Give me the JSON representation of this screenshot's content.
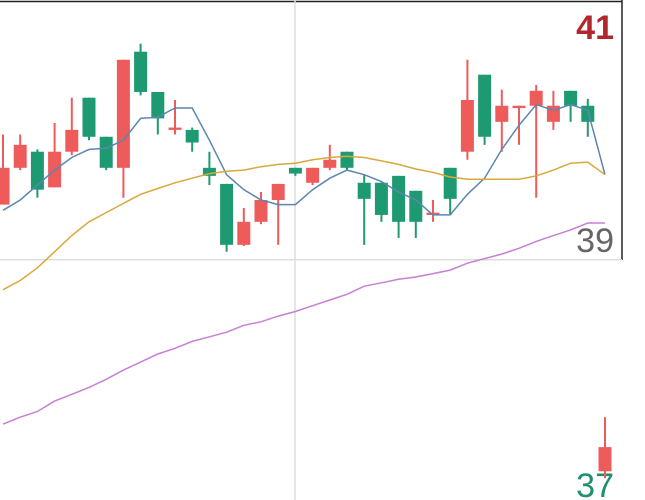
{
  "chart_data": {
    "type": "candlestick",
    "ylim": [
      36.91,
      41.26
    ],
    "yticks": [
      37,
      39,
      41
    ],
    "ytick_colors": [
      "#1f8f6f",
      "#666666",
      "#b0282c"
    ],
    "up_color": "#ee5b5b",
    "down_color": "#1e9a72",
    "open": [
      39.48,
      39.8,
      39.94,
      39.63,
      39.94,
      40.41,
      40.07,
      39.8,
      40.81,
      40.46,
      40.13,
      40.13,
      39.8,
      39.66,
      39.13,
      39.33,
      39.52,
      39.8,
      39.67,
      39.8,
      39.94,
      39.67,
      39.67,
      39.73,
      39.6,
      39.39,
      39.8,
      39.94,
      40.61,
      40.2,
      40.32,
      40.34,
      40.2,
      40.47,
      40.34,
      37.16
    ],
    "high": [
      40.09,
      40.09,
      39.96,
      40.19,
      40.41,
      40.41,
      40.07,
      40.74,
      40.88,
      40.46,
      40.39,
      40.15,
      39.94,
      39.66,
      39.45,
      39.59,
      39.66,
      39.8,
      39.8,
      40.0,
      39.94,
      39.74,
      39.67,
      39.73,
      39.6,
      39.52,
      39.8,
      40.74,
      40.61,
      40.48,
      40.34,
      40.52,
      40.47,
      40.47,
      40.4,
      37.63
    ],
    "low": [
      39.48,
      39.78,
      39.54,
      39.63,
      39.91,
      40.04,
      39.78,
      39.54,
      40.43,
      40.09,
      40.09,
      39.94,
      39.65,
      39.07,
      39.12,
      39.31,
      39.13,
      39.73,
      39.65,
      39.78,
      39.78,
      39.13,
      39.33,
      39.19,
      39.19,
      39.33,
      39.39,
      39.87,
      40.0,
      39.94,
      40.0,
      39.54,
      40.13,
      40.2,
      40.07,
      37.1
    ],
    "close": [
      39.8,
      40.0,
      39.61,
      39.94,
      40.13,
      40.07,
      39.8,
      40.74,
      40.46,
      40.23,
      40.15,
      40.02,
      39.73,
      39.13,
      39.33,
      39.52,
      39.66,
      39.75,
      39.8,
      39.87,
      39.8,
      39.53,
      39.39,
      39.33,
      39.33,
      39.41,
      39.53,
      40.39,
      40.07,
      40.34,
      40.34,
      40.47,
      40.34,
      40.34,
      40.2,
      37.37
    ],
    "lines": [
      {
        "color": "#5b86b0",
        "values": [
          39.43,
          39.52,
          39.65,
          39.78,
          39.89,
          39.96,
          39.97,
          40.04,
          40.23,
          40.24,
          40.32,
          40.32,
          40.04,
          39.74,
          39.61,
          39.52,
          39.48,
          39.48,
          39.61,
          39.71,
          39.78,
          39.74,
          39.68,
          39.59,
          39.52,
          39.39,
          39.39,
          39.57,
          39.71,
          39.96,
          40.17,
          40.35,
          40.3,
          40.35,
          40.3,
          39.74
        ]
      },
      {
        "color": "#d9a83a",
        "values": [
          38.74,
          38.82,
          38.93,
          39.07,
          39.21,
          39.33,
          39.41,
          39.49,
          39.57,
          39.62,
          39.67,
          39.71,
          39.75,
          39.77,
          39.78,
          39.81,
          39.83,
          39.84,
          39.87,
          39.89,
          39.9,
          39.89,
          39.86,
          39.83,
          39.79,
          39.76,
          39.72,
          39.7,
          39.7,
          39.7,
          39.7,
          39.73,
          39.78,
          39.84,
          39.85,
          39.74
        ]
      },
      {
        "color": "#c77fd6",
        "values": [
          37.57,
          37.63,
          37.68,
          37.77,
          37.83,
          37.89,
          37.96,
          38.04,
          38.11,
          38.18,
          38.23,
          38.29,
          38.33,
          38.37,
          38.43,
          38.46,
          38.51,
          38.55,
          38.6,
          38.65,
          38.7,
          38.77,
          38.8,
          38.83,
          38.85,
          38.88,
          38.91,
          38.97,
          39.01,
          39.05,
          39.1,
          39.16,
          39.21,
          39.26,
          39.32,
          39.32
        ]
      }
    ]
  }
}
